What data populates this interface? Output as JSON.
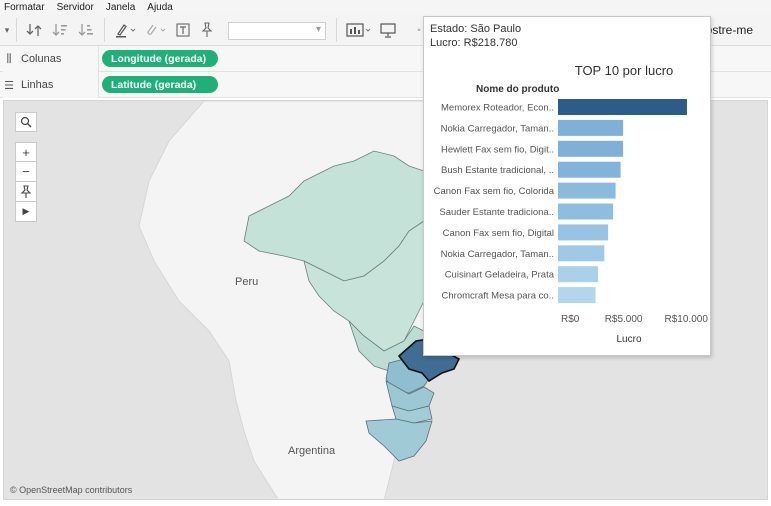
{
  "menu": {
    "items": [
      "Formatar",
      "Servidor",
      "Janela",
      "Ajuda"
    ]
  },
  "toolbar": {
    "right_label": "ostre-me"
  },
  "shelves": {
    "columns_label": "Colunas",
    "columns_pill": "Longitude (gerada)",
    "rows_label": "Linhas",
    "rows_pill": "Latitude (gerada)"
  },
  "map": {
    "country_labels": [
      "Peru",
      "Argentina"
    ],
    "attribution": "© OpenStreetMap contributors",
    "colors": {
      "ocean": "#e3e3e3",
      "land": "#f5f5f5",
      "light_region": "#c8e3da",
      "mid_region": "#99c3d3",
      "selected_region": "#3e6b92"
    }
  },
  "tooltip": {
    "state_line": "Estado: São Paulo",
    "profit_line": "Lucro: R$218.780"
  },
  "chart_data": {
    "type": "bar",
    "orientation": "horizontal",
    "title": "TOP 10 por lucro",
    "category_header": "Nome do produto",
    "xlabel": "Lucro",
    "x_ticks": [
      "R$0",
      "R$5.000",
      "R$10.000"
    ],
    "x_tick_values": [
      0,
      5000,
      10000
    ],
    "xlim": [
      0,
      11500
    ],
    "categories": [
      "Memorex Roteador, Econ..",
      "Nokia Carregador, Taman..",
      "Hewlett Fax sem fio, Digit..",
      "Bush Estante tradicional, ..",
      "Canon Fax sem fio, Colorida",
      "Sauder Estante tradiciona..",
      "Canon Fax sem fio, Digital",
      "Nokia Carregador, Taman..",
      "Cuisinart Geladeira, Prata",
      "Chromcraft Mesa para co.."
    ],
    "values": [
      10300,
      5200,
      5200,
      5000,
      4600,
      4400,
      4000,
      3700,
      3200,
      3000
    ],
    "colors": [
      "#2c5d8a",
      "#7fb0d8",
      "#7fb0d8",
      "#82b3da",
      "#8bbadf",
      "#8fbde0",
      "#98c4e4",
      "#9fc9e6",
      "#abd0ea",
      "#b3d6ed"
    ]
  }
}
